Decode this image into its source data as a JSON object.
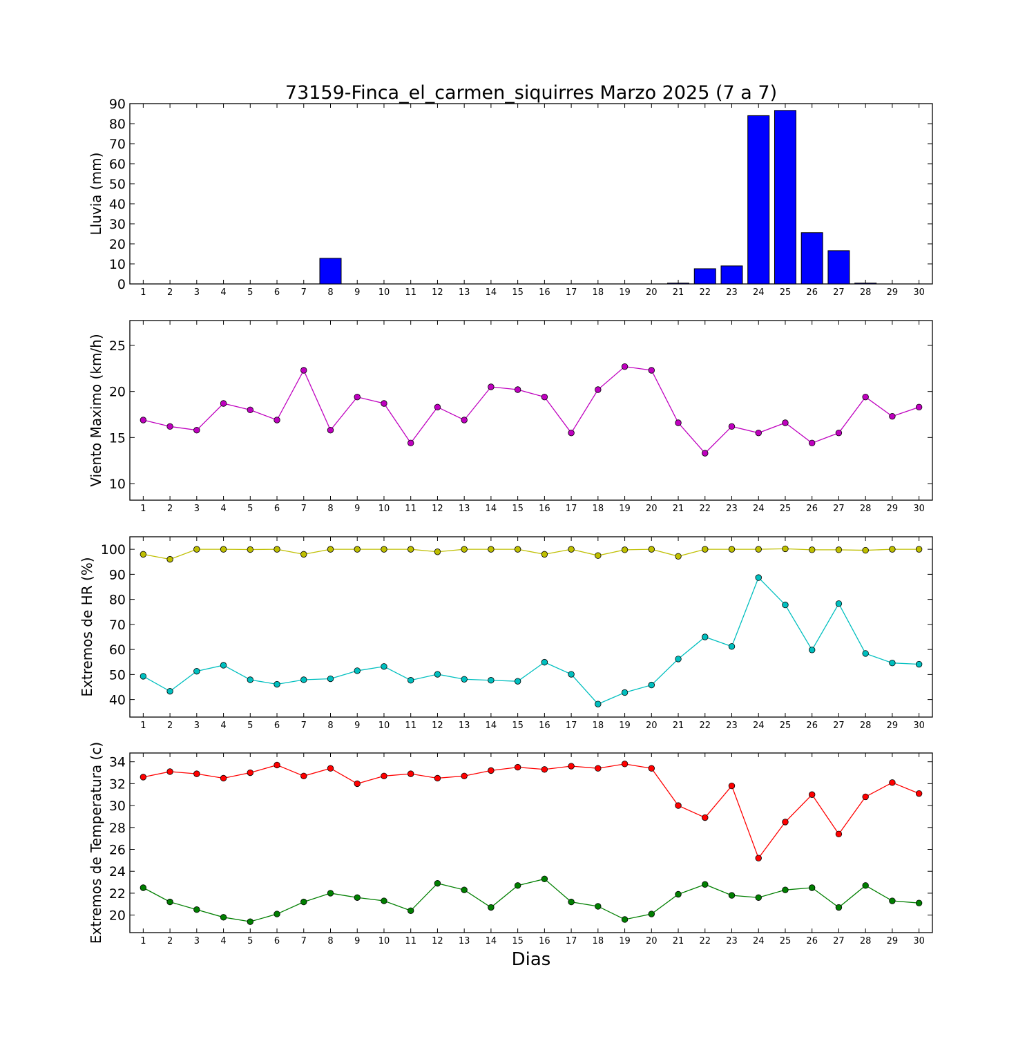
{
  "title": "73159-Finca_el_carmen_siquirres Marzo 2025  (7 a 7)",
  "xlabel": "Dias",
  "chart_data": [
    {
      "type": "bar",
      "ylabel": "Lluvia (mm)",
      "ylim": [
        0,
        90
      ],
      "yticks": [
        0,
        10,
        20,
        30,
        40,
        50,
        60,
        70,
        80,
        90
      ],
      "xlim": [
        0.5,
        30.5
      ],
      "x": [
        1,
        2,
        3,
        4,
        5,
        6,
        7,
        8,
        9,
        10,
        11,
        12,
        13,
        14,
        15,
        16,
        17,
        18,
        19,
        20,
        21,
        22,
        23,
        24,
        25,
        26,
        27,
        28,
        29,
        30
      ],
      "series": [
        {
          "color": "#0000ff",
          "values": [
            0,
            0,
            0,
            0,
            0,
            0,
            0,
            12.8,
            0,
            0,
            0,
            0,
            0,
            0,
            0,
            0,
            0,
            0,
            0,
            0,
            0.4,
            7.6,
            9.0,
            84.0,
            86.6,
            25.6,
            16.6,
            0.4,
            0,
            0
          ]
        }
      ]
    },
    {
      "type": "line",
      "ylabel": "Viento Maximo (km/h)",
      "ylim": [
        8.2,
        27.7
      ],
      "yticks": [
        10,
        15,
        20,
        25
      ],
      "xlim": [
        0.5,
        30.5
      ],
      "x": [
        1,
        2,
        3,
        4,
        5,
        6,
        7,
        8,
        9,
        10,
        11,
        12,
        13,
        14,
        15,
        16,
        17,
        18,
        19,
        20,
        21,
        22,
        23,
        24,
        25,
        26,
        27,
        28,
        29,
        30
      ],
      "series": [
        {
          "color": "#bf00bf",
          "values": [
            16.9,
            16.2,
            15.8,
            18.7,
            18.0,
            16.9,
            22.3,
            15.8,
            19.4,
            18.7,
            14.4,
            18.3,
            16.9,
            20.5,
            20.2,
            19.4,
            15.5,
            20.2,
            22.7,
            22.3,
            16.6,
            13.3,
            16.2,
            15.5,
            16.6,
            14.4,
            15.5,
            19.4,
            17.3,
            18.3
          ]
        }
      ]
    },
    {
      "type": "line",
      "ylabel": "Extremos de HR (%)",
      "ylim": [
        33,
        105
      ],
      "yticks": [
        40,
        50,
        60,
        70,
        80,
        90,
        100
      ],
      "xlim": [
        0.5,
        30.5
      ],
      "x": [
        1,
        2,
        3,
        4,
        5,
        6,
        7,
        8,
        9,
        10,
        11,
        12,
        13,
        14,
        15,
        16,
        17,
        18,
        19,
        20,
        21,
        22,
        23,
        24,
        25,
        26,
        27,
        28,
        29,
        30
      ],
      "series": [
        {
          "color": "#bfbf00",
          "values": [
            98,
            96,
            100,
            100,
            99.9,
            100,
            98,
            100,
            100,
            100,
            100,
            99,
            100,
            100,
            100,
            98,
            100,
            97.5,
            99.8,
            100,
            97.2,
            100,
            100,
            100,
            100.2,
            99.8,
            99.8,
            99.6,
            100,
            100
          ]
        },
        {
          "color": "#00bfbf",
          "values": [
            49.3,
            43.3,
            51.3,
            53.7,
            47.9,
            46.1,
            47.9,
            48.3,
            51.5,
            53.2,
            47.7,
            50.1,
            48.1,
            47.7,
            47.3,
            54.9,
            50.1,
            38.2,
            42.8,
            45.8,
            56.2,
            65.0,
            61.2,
            88.7,
            77.8,
            59.8,
            78.3,
            58.4,
            54.6,
            54.1
          ]
        }
      ]
    },
    {
      "type": "line",
      "ylabel": "Extremos de Temperatura (c)",
      "ylim": [
        18.4,
        34.8
      ],
      "yticks": [
        20,
        22,
        24,
        26,
        28,
        30,
        32,
        34
      ],
      "xlim": [
        0.5,
        30.5
      ],
      "x": [
        1,
        2,
        3,
        4,
        5,
        6,
        7,
        8,
        9,
        10,
        11,
        12,
        13,
        14,
        15,
        16,
        17,
        18,
        19,
        20,
        21,
        22,
        23,
        24,
        25,
        26,
        27,
        28,
        29,
        30
      ],
      "series": [
        {
          "color": "#ff0000",
          "values": [
            32.6,
            33.1,
            32.9,
            32.5,
            33.0,
            33.7,
            32.7,
            33.4,
            32.0,
            32.7,
            32.9,
            32.5,
            32.7,
            33.2,
            33.5,
            33.3,
            33.6,
            33.4,
            33.8,
            33.4,
            30.0,
            28.9,
            31.8,
            25.2,
            28.5,
            31.0,
            27.4,
            30.8,
            32.1,
            31.1
          ]
        },
        {
          "color": "#007f00",
          "values": [
            22.5,
            21.2,
            20.5,
            19.8,
            19.4,
            20.1,
            21.2,
            22.0,
            21.6,
            21.3,
            20.4,
            22.9,
            22.3,
            20.7,
            22.7,
            23.3,
            21.2,
            20.8,
            19.6,
            20.1,
            21.9,
            22.8,
            21.8,
            21.6,
            22.3,
            22.5,
            20.7,
            22.7,
            21.3,
            21.1
          ]
        }
      ]
    }
  ]
}
